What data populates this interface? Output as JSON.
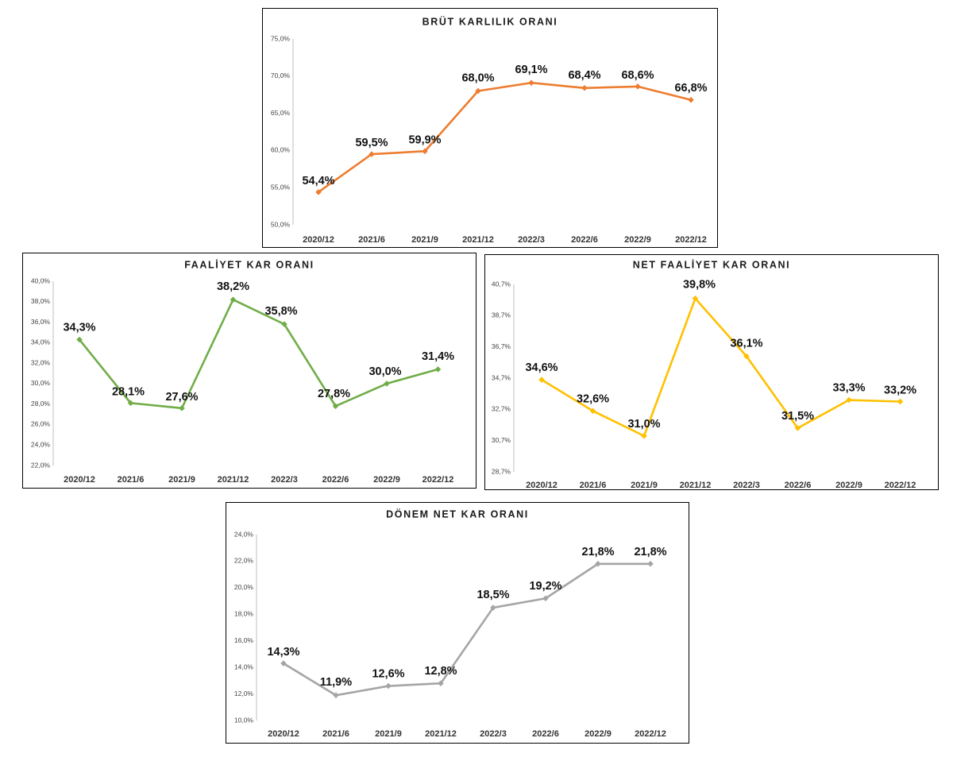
{
  "chart_data": [
    {
      "type": "line",
      "title": "BRÜT KARLILIK ORANI",
      "color": "#ED7D31",
      "categories": [
        "2020/12",
        "2021/6",
        "2021/9",
        "2021/12",
        "2022/3",
        "2022/6",
        "2022/9",
        "2022/12"
      ],
      "values": [
        54.4,
        59.5,
        59.9,
        68.0,
        69.1,
        68.4,
        68.6,
        66.8
      ],
      "data_labels": [
        "54,4%",
        "59,5%",
        "59,9%",
        "68,0%",
        "69,1%",
        "68,4%",
        "68,6%",
        "66,8%"
      ],
      "ylim": [
        50.0,
        75.0
      ],
      "y_ticks": [
        "50,0%",
        "55,0%",
        "60,0%",
        "65,0%",
        "70,0%",
        "75,0%"
      ],
      "grid": false
    },
    {
      "type": "line",
      "title": "FAALİYET KAR ORANI",
      "color": "#70AD47",
      "categories": [
        "2020/12",
        "2021/6",
        "2021/9",
        "2021/12",
        "2022/3",
        "2022/6",
        "2022/9",
        "2022/12"
      ],
      "values": [
        34.3,
        28.1,
        27.6,
        38.2,
        35.8,
        27.8,
        30.0,
        31.4
      ],
      "data_labels": [
        "34,3%",
        "28,1%",
        "27,6%",
        "38,2%",
        "35,8%",
        "27,8%",
        "30,0%",
        "31,4%"
      ],
      "ylim": [
        22.0,
        40.0
      ],
      "y_ticks": [
        "22,0%",
        "24,0%",
        "26,0%",
        "28,0%",
        "30,0%",
        "32,0%",
        "34,0%",
        "36,0%",
        "38,0%",
        "40,0%"
      ],
      "grid": false
    },
    {
      "type": "line",
      "title": "NET FAALİYET KAR ORANI",
      "color": "#FFC000",
      "categories": [
        "2020/12",
        "2021/6",
        "2021/9",
        "2021/12",
        "2022/3",
        "2022/6",
        "2022/9",
        "2022/12"
      ],
      "values": [
        34.6,
        32.6,
        31.0,
        39.8,
        36.1,
        31.5,
        33.3,
        33.2
      ],
      "data_labels": [
        "34,6%",
        "32,6%",
        "31,0%",
        "39,8%",
        "36,1%",
        "31,5%",
        "33,3%",
        "33,2%"
      ],
      "ylim": [
        28.7,
        40.7
      ],
      "y_ticks": [
        "28,7%",
        "30,7%",
        "32,7%",
        "34,7%",
        "36,7%",
        "38,7%",
        "40,7%"
      ],
      "grid": false
    },
    {
      "type": "line",
      "title": "DÖNEM NET KAR ORANI",
      "color": "#A5A5A5",
      "categories": [
        "2020/12",
        "2021/6",
        "2021/9",
        "2021/12",
        "2022/3",
        "2022/6",
        "2022/9",
        "2022/12"
      ],
      "values": [
        14.3,
        11.9,
        12.6,
        12.8,
        18.5,
        19.2,
        21.8,
        21.8
      ],
      "data_labels": [
        "14,3%",
        "11,9%",
        "12,6%",
        "12,8%",
        "18,5%",
        "19,2%",
        "21,8%",
        "21,8%"
      ],
      "ylim": [
        10.0,
        24.0
      ],
      "y_ticks": [
        "10,0%",
        "12,0%",
        "14,0%",
        "16,0%",
        "18,0%",
        "20,0%",
        "22,0%",
        "24,0%"
      ],
      "grid": false
    }
  ]
}
